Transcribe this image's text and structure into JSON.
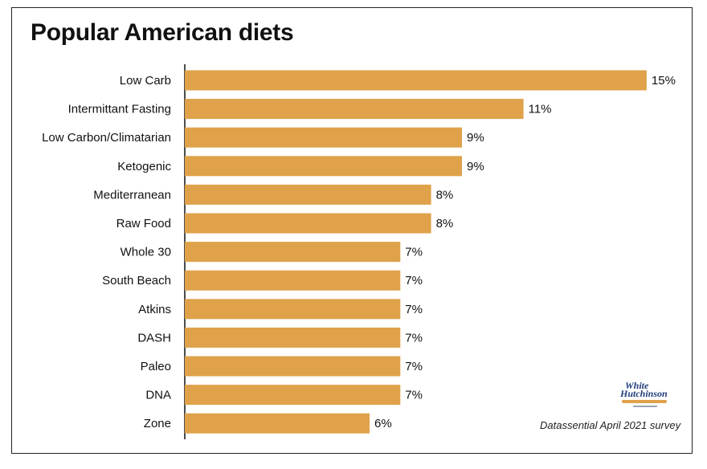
{
  "colors": {
    "bar": "#DFA24A",
    "axis": "#111111",
    "text": "#111111"
  },
  "logo": {
    "line1": "White",
    "line2": "Hutchinson"
  },
  "source": "Datassential April 2021 survey",
  "chart_data": {
    "type": "bar",
    "orientation": "horizontal",
    "title": "Popular American diets",
    "xlabel": "",
    "ylabel": "",
    "grid": false,
    "legend": "none",
    "unit": "%",
    "xlim": [
      0,
      15
    ],
    "categories": [
      "Low Carb",
      "Intermittant Fasting",
      "Low Carbon/Climatarian",
      "Ketogenic",
      "Mediterranean",
      "Raw Food",
      "Whole 30",
      "South Beach",
      "Atkins",
      "DASH",
      "Paleo",
      "DNA",
      "Zone"
    ],
    "values": [
      15,
      11,
      9,
      9,
      8,
      8,
      7,
      7,
      7,
      7,
      7,
      7,
      6
    ],
    "value_labels": [
      "15%",
      "11%",
      "9%",
      "9%",
      "8%",
      "8%",
      "7%",
      "7%",
      "7%",
      "7%",
      "7%",
      "7%",
      "6%"
    ]
  }
}
